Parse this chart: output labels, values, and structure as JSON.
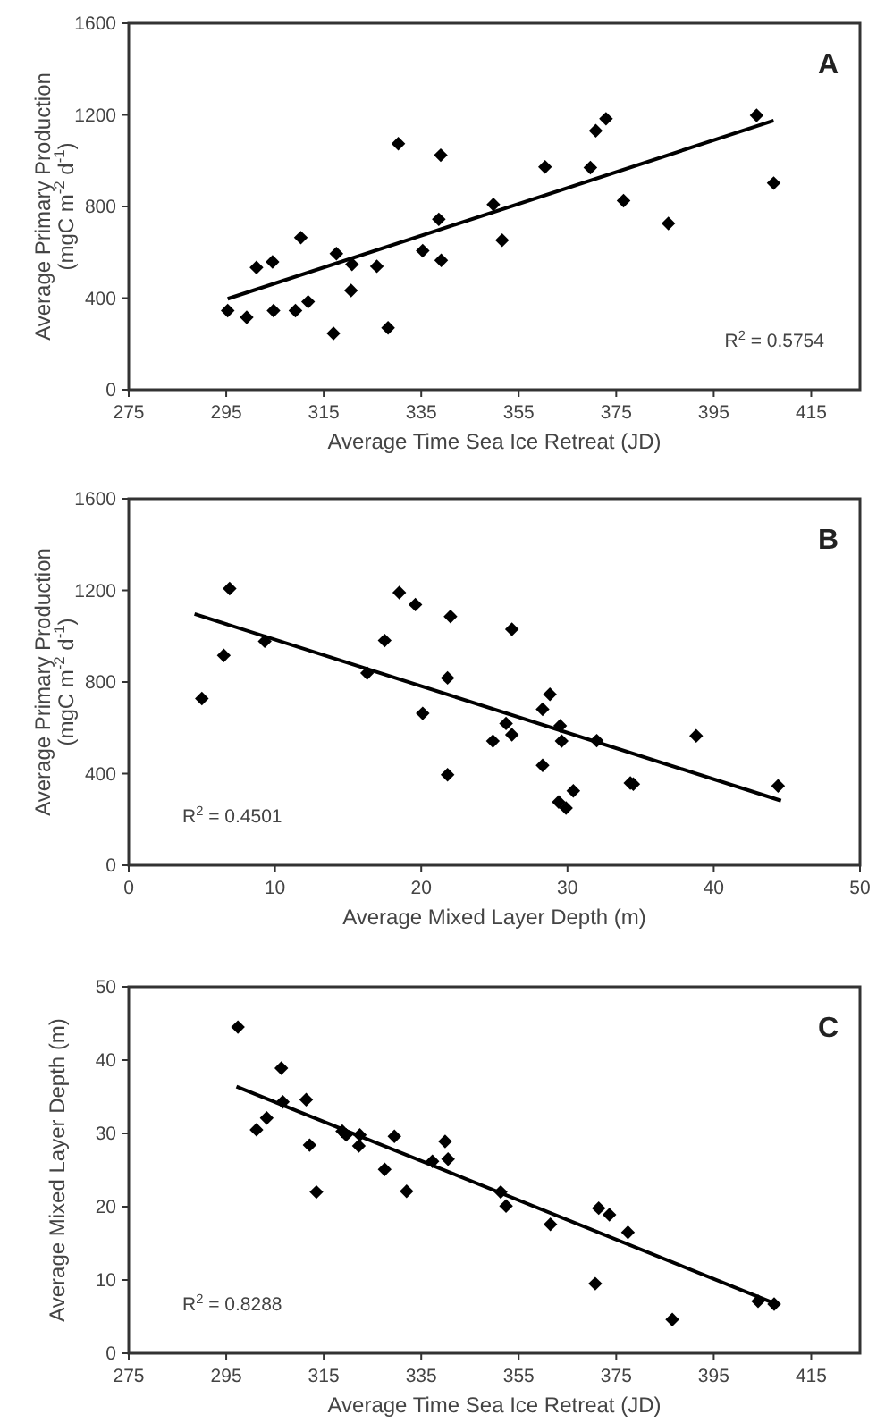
{
  "chart_data": [
    {
      "type": "scatter",
      "xlabel": "Average Time Sea Ice Retreat (JD)",
      "ylabel": "Average Primary Production\n(mgC m$^{-2}$ d$^{-1}$)",
      "xlim": [
        275,
        425
      ],
      "xticks": [
        275,
        295,
        315,
        335,
        355,
        375,
        395,
        415
      ],
      "ylim": [
        0,
        1600
      ],
      "yticks": [
        0,
        400,
        800,
        1200,
        1600
      ],
      "grid": false,
      "annotations": [
        "A",
        "R$^{2}$ = 0.5754"
      ],
      "series": [
        {
          "marker": "diamond",
          "color": "#000000",
          "x": [
            295.3,
            299.2,
            301.2,
            304.5,
            304.7,
            309.2,
            310.3,
            311.8,
            317.0,
            317.6,
            320.8,
            320.6,
            325.9,
            328.2,
            330.3,
            335.3,
            338.6,
            339.0,
            339.1,
            349.8,
            351.6,
            360.4,
            369.7,
            370.8,
            372.9,
            376.5,
            385.7,
            403.8,
            407.3
          ],
          "values": [
            345,
            316,
            534,
            558,
            345,
            345,
            664,
            384,
            246,
            594,
            547,
            433,
            539,
            270,
            1074,
            607,
            744,
            1024,
            565,
            809,
            653,
            973,
            970,
            1131,
            1183,
            825,
            726,
            1198,
            902
          ]
        },
        {
          "type": "line",
          "marker": "none",
          "color": "#000000",
          "x": [
            295.3,
            407.3
          ],
          "values": [
            397,
            1175
          ]
        }
      ]
    },
    {
      "type": "scatter",
      "xlabel": "Average Mixed Layer Depth (m)",
      "ylabel": "Average Primary Production\n(mgC m$^{-2}$ d$^{-1}$)",
      "xlim": [
        0,
        50
      ],
      "xticks": [
        0,
        10,
        20,
        30,
        40,
        50
      ],
      "ylim": [
        0,
        1600
      ],
      "yticks": [
        0,
        400,
        800,
        1200,
        1600
      ],
      "grid": false,
      "annotations": [
        "B",
        "R$^{2}$ = 0.4501"
      ],
      "series": [
        {
          "marker": "diamond",
          "color": "#000000",
          "x": [
            5.0,
            6.5,
            6.9,
            9.3,
            16.3,
            17.5,
            18.5,
            19.6,
            20.1,
            21.8,
            21.8,
            22.0,
            24.9,
            25.8,
            26.2,
            26.2,
            28.3,
            28.3,
            28.8,
            29.5,
            29.6,
            29.4,
            29.9,
            30.4,
            32.0,
            34.3,
            34.5,
            38.8,
            44.4
          ],
          "values": [
            728,
            916,
            1208,
            978,
            839,
            981,
            1190,
            1138,
            663,
            818,
            395,
            1086,
            542,
            619,
            570,
            1030,
            681,
            436,
            746,
            609,
            542,
            276,
            250,
            325,
            544,
            359,
            354,
            565,
            346
          ]
        },
        {
          "type": "line",
          "marker": "none",
          "color": "#000000",
          "x": [
            4.5,
            44.6
          ],
          "values": [
            1097,
            282
          ]
        }
      ]
    },
    {
      "type": "scatter",
      "xlabel": "Average Time Sea Ice Retreat (JD)",
      "ylabel": "Average Mixed Layer Depth (m)",
      "xlim": [
        275,
        425
      ],
      "xticks": [
        275,
        295,
        315,
        335,
        355,
        375,
        395,
        415
      ],
      "ylim": [
        0,
        50
      ],
      "yticks": [
        0,
        10,
        20,
        30,
        40,
        50
      ],
      "grid": false,
      "annotations": [
        "C",
        "R$^{2}$ = 0.8288"
      ],
      "series": [
        {
          "marker": "diamond",
          "color": "#000000",
          "x": [
            297.4,
            301.2,
            303.3,
            306.3,
            306.6,
            311.4,
            312.1,
            313.5,
            318.8,
            319.6,
            322.4,
            322.2,
            327.5,
            329.5,
            332.0,
            337.3,
            339.9,
            340.5,
            351.3,
            352.4,
            361.5,
            370.7,
            371.4,
            373.6,
            377.4,
            386.5,
            404.1,
            407.4
          ],
          "values": [
            44.5,
            30.5,
            32.1,
            38.9,
            34.3,
            34.6,
            28.4,
            22.0,
            30.3,
            29.8,
            29.8,
            28.3,
            25.1,
            29.6,
            22.1,
            26.2,
            28.9,
            26.5,
            22.0,
            20.1,
            17.6,
            9.5,
            19.8,
            18.9,
            16.5,
            4.6,
            7.1,
            6.7
          ]
        },
        {
          "type": "line",
          "marker": "none",
          "color": "#000000",
          "x": [
            297.1,
            407.9
          ],
          "values": [
            36.4,
            6.7
          ]
        }
      ]
    }
  ]
}
